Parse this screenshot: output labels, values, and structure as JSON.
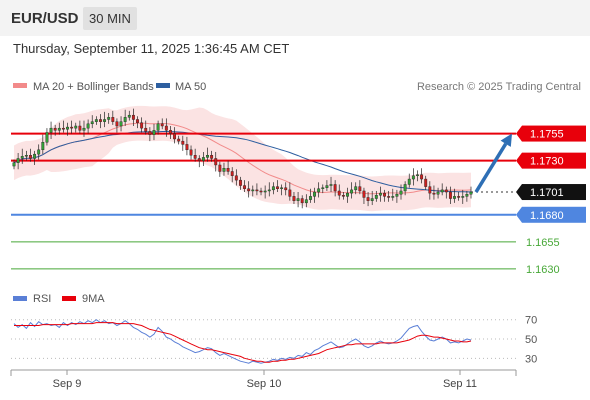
{
  "header": {
    "symbol": "EUR/USD",
    "timeframe": "30 MIN"
  },
  "datetime": "Thursday, September 11, 2025 1:36:45 AM CET",
  "colors": {
    "bollinger": "#f28a8a",
    "bollinger_fill": "#fbe3e3",
    "ma50": "#2e5fa0",
    "resistance": "#e8000b",
    "support": "#4f86e0",
    "minor_support": "#48a838",
    "candle_up": "#34a038",
    "candle_down": "#cc1f1f",
    "rsi": "#5a7fd6",
    "rsi_ma": "#e8000b",
    "arrow": "#2e6fb5"
  },
  "chart_data": [
    {
      "type": "candlestick",
      "legend": [
        "MA 20 + Bollinger Bands",
        "MA 50"
      ],
      "credit": "Research © 2025 Trading Central",
      "x_tick_labels": [
        "Sep 9",
        "Sep 10",
        "Sep 11"
      ],
      "ylim": [
        1.1617,
        1.1786
      ],
      "current_price": "1.1701",
      "levels": [
        {
          "value": 1.1755,
          "label": "1.1755",
          "kind": "resistance"
        },
        {
          "value": 1.173,
          "label": "1.1730",
          "kind": "resistance"
        },
        {
          "value": 1.168,
          "label": "1.1680",
          "kind": "support"
        },
        {
          "value": 1.1655,
          "label": "1.1655",
          "kind": "minor_support"
        },
        {
          "value": 1.163,
          "label": "1.1630",
          "kind": "minor_support"
        }
      ],
      "forecast_arrow": {
        "from": 1.1701,
        "to": 1.1755,
        "direction": "up"
      },
      "closes": [
        1.1728,
        1.1732,
        1.1734,
        1.1735,
        1.1732,
        1.1736,
        1.174,
        1.1747,
        1.1756,
        1.176,
        1.1758,
        1.176,
        1.1759,
        1.1761,
        1.176,
        1.1762,
        1.1758,
        1.176,
        1.1764,
        1.1766,
        1.1768,
        1.1766,
        1.1768,
        1.177,
        1.1766,
        1.1762,
        1.1766,
        1.177,
        1.1772,
        1.1768,
        1.1765,
        1.176,
        1.1757,
        1.1754,
        1.1758,
        1.1764,
        1.1762,
        1.1758,
        1.1755,
        1.175,
        1.1748,
        1.1745,
        1.174,
        1.1735,
        1.1732,
        1.173,
        1.1733,
        1.1735,
        1.1732,
        1.1726,
        1.172,
        1.1723,
        1.172,
        1.1716,
        1.1712,
        1.1707,
        1.1704,
        1.1702,
        1.1703,
        1.1702,
        1.1701,
        1.1702,
        1.1703,
        1.1706,
        1.1704,
        1.1705,
        1.1703,
        1.1697,
        1.1693,
        1.1695,
        1.1691,
        1.1694,
        1.1697,
        1.1701,
        1.1704,
        1.1705,
        1.1707,
        1.1708,
        1.1702,
        1.1698,
        1.1697,
        1.17,
        1.1703,
        1.1706,
        1.1702,
        1.1696,
        1.1693,
        1.1695,
        1.1698,
        1.17,
        1.1697,
        1.1696,
        1.1697,
        1.1699,
        1.1702,
        1.1708,
        1.1713,
        1.1716,
        1.1717,
        1.1713,
        1.1706,
        1.17,
        1.1699,
        1.1701,
        1.1703,
        1.1701,
        1.1695,
        1.1697,
        1.1696,
        1.1697,
        1.1699,
        1.1701
      ]
    },
    {
      "type": "line",
      "legend": [
        "RSI",
        "9MA"
      ],
      "y_tick_labels": [
        "70",
        "50",
        "30"
      ],
      "ylim": [
        20,
        78
      ],
      "series": [
        {
          "name": "RSI",
          "values": [
            66,
            62,
            65,
            61,
            67,
            63,
            68,
            65,
            66,
            64,
            65,
            62,
            67,
            64,
            67,
            65,
            68,
            66,
            69,
            67,
            70,
            67,
            69,
            66,
            67,
            64,
            66,
            69,
            66,
            62,
            60,
            57,
            55,
            52,
            55,
            62,
            58,
            52,
            50,
            47,
            45,
            42,
            40,
            38,
            36,
            37,
            39,
            41,
            40,
            36,
            33,
            35,
            33,
            31,
            29,
            27,
            26,
            25,
            27,
            26,
            25,
            26,
            27,
            29,
            28,
            30,
            29,
            31,
            30,
            33,
            32,
            36,
            34,
            38,
            40,
            43,
            45,
            47,
            44,
            41,
            42,
            45,
            48,
            50,
            47,
            43,
            41,
            43,
            46,
            48,
            46,
            45,
            46,
            48,
            51,
            56,
            61,
            63,
            64,
            58,
            53,
            49,
            48,
            50,
            52,
            50,
            46,
            47,
            46,
            48,
            50,
            49
          ]
        },
        {
          "name": "9MA",
          "values": [
            64,
            64,
            64,
            64,
            64,
            64,
            64,
            65,
            65,
            65,
            65,
            65,
            65,
            65,
            66,
            66,
            66,
            66,
            66,
            66,
            67,
            67,
            67,
            67,
            67,
            66,
            66,
            66,
            66,
            66,
            65,
            64,
            62,
            60,
            59,
            58,
            57,
            56,
            55,
            53,
            51,
            49,
            47,
            45,
            43,
            41,
            40,
            39,
            39,
            38,
            37,
            36,
            35,
            34,
            33,
            32,
            30,
            29,
            28,
            27,
            27,
            26,
            26,
            27,
            27,
            28,
            28,
            29,
            29,
            30,
            31,
            32,
            33,
            34,
            35,
            37,
            39,
            40,
            41,
            42,
            43,
            44,
            44,
            45,
            45,
            45,
            45,
            45,
            45,
            46,
            46,
            46,
            46,
            46,
            47,
            48,
            49,
            51,
            53,
            54,
            54,
            53,
            52,
            52,
            51,
            50,
            49,
            48,
            48,
            47,
            47,
            48
          ]
        }
      ]
    }
  ]
}
